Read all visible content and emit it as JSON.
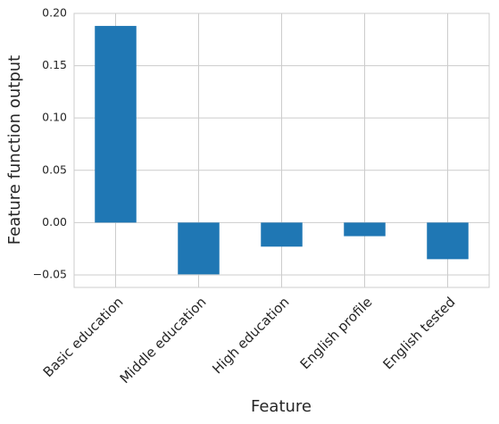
{
  "chart_data": {
    "type": "bar",
    "categories": [
      "Basic education",
      "Middle education",
      "High education",
      "English profile",
      "English tested"
    ],
    "values": [
      0.188,
      -0.0495,
      -0.023,
      -0.013,
      -0.035
    ],
    "color": "#1f77b4",
    "xlabel": "Feature",
    "ylabel": "Feature function output",
    "ylim": [
      -0.062,
      0.2
    ],
    "yticks": [
      {
        "value": -0.05,
        "label": "−0.05"
      },
      {
        "value": 0,
        "label": "0.00"
      },
      0.05,
      {
        "value": 0.1,
        "label": "0.10"
      },
      0.15,
      {
        "value": 0.2,
        "label": "0.20"
      }
    ],
    "grid": true
  }
}
